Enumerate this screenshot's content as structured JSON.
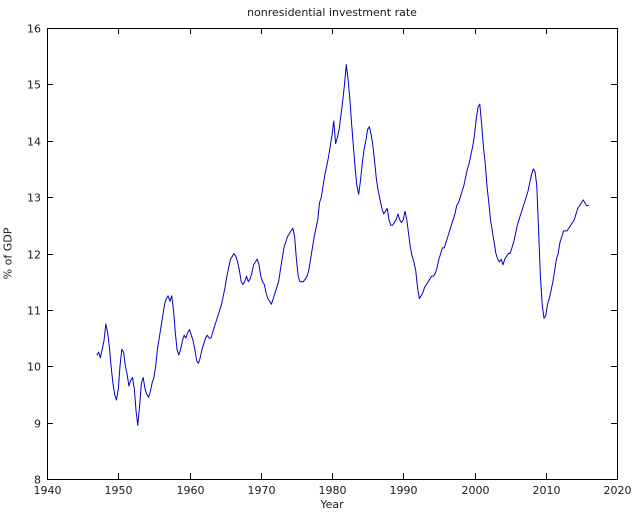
{
  "chart": {
    "title": "nonresidential investment rate",
    "xlabel": "Year",
    "ylabel": "% of GDP"
  },
  "chart_data": {
    "type": "line",
    "title": "nonresidential investment rate",
    "xlabel": "Year",
    "ylabel": "% of GDP",
    "xlim": [
      1940,
      2020
    ],
    "ylim": [
      8,
      16
    ],
    "x_ticks": [
      1940,
      1950,
      1960,
      1970,
      1980,
      1990,
      2000,
      2010,
      2020
    ],
    "y_ticks": [
      8,
      9,
      10,
      11,
      12,
      13,
      14,
      15,
      16
    ],
    "grid": false,
    "legend": "none",
    "line_color": "#0000cc",
    "background": "#ffffff",
    "series": [
      {
        "name": "nonresidential investment rate",
        "x_start": 1947.0,
        "x_step": 0.25,
        "values": [
          10.2,
          10.25,
          10.15,
          10.3,
          10.45,
          10.75,
          10.6,
          10.35,
          10.0,
          9.7,
          9.5,
          9.4,
          9.6,
          10.0,
          10.3,
          10.25,
          10.0,
          9.85,
          9.65,
          9.75,
          9.8,
          9.6,
          9.2,
          8.95,
          9.3,
          9.7,
          9.8,
          9.6,
          9.5,
          9.45,
          9.55,
          9.7,
          9.8,
          10.0,
          10.3,
          10.5,
          10.7,
          10.9,
          11.1,
          11.2,
          11.25,
          11.15,
          11.25,
          11.0,
          10.6,
          10.3,
          10.2,
          10.3,
          10.45,
          10.55,
          10.5,
          10.6,
          10.65,
          10.55,
          10.45,
          10.3,
          10.1,
          10.05,
          10.15,
          10.3,
          10.4,
          10.5,
          10.55,
          10.5,
          10.5,
          10.6,
          10.7,
          10.8,
          10.9,
          11.0,
          11.1,
          11.25,
          11.4,
          11.6,
          11.75,
          11.9,
          11.95,
          12.0,
          11.95,
          11.85,
          11.7,
          11.5,
          11.45,
          11.5,
          11.6,
          11.5,
          11.55,
          11.65,
          11.8,
          11.85,
          11.9,
          11.8,
          11.6,
          11.5,
          11.45,
          11.3,
          11.2,
          11.15,
          11.1,
          11.2,
          11.3,
          11.4,
          11.5,
          11.7,
          11.9,
          12.1,
          12.2,
          12.3,
          12.35,
          12.4,
          12.45,
          12.3,
          11.9,
          11.6,
          11.5,
          11.5,
          11.5,
          11.55,
          11.6,
          11.7,
          11.9,
          12.1,
          12.3,
          12.45,
          12.6,
          12.9,
          13.0,
          13.2,
          13.4,
          13.55,
          13.7,
          13.9,
          14.1,
          14.35,
          13.95,
          14.05,
          14.2,
          14.45,
          14.7,
          15.0,
          15.35,
          15.1,
          14.75,
          14.3,
          13.9,
          13.5,
          13.2,
          13.05,
          13.3,
          13.6,
          13.85,
          14.0,
          14.2,
          14.25,
          14.1,
          13.9,
          13.6,
          13.3,
          13.1,
          12.95,
          12.8,
          12.7,
          12.75,
          12.8,
          12.6,
          12.5,
          12.5,
          12.55,
          12.6,
          12.7,
          12.6,
          12.55,
          12.6,
          12.75,
          12.6,
          12.35,
          12.1,
          11.95,
          11.85,
          11.7,
          11.4,
          11.2,
          11.25,
          11.3,
          11.4,
          11.45,
          11.5,
          11.55,
          11.6,
          11.6,
          11.65,
          11.75,
          11.9,
          12.0,
          12.1,
          12.1,
          12.2,
          12.3,
          12.4,
          12.5,
          12.6,
          12.7,
          12.85,
          12.9,
          13.0,
          13.1,
          13.2,
          13.35,
          13.5,
          13.6,
          13.75,
          13.9,
          14.1,
          14.4,
          14.6,
          14.65,
          14.3,
          13.9,
          13.6,
          13.2,
          12.9,
          12.6,
          12.4,
          12.2,
          12.0,
          11.9,
          11.85,
          11.9,
          11.8,
          11.9,
          11.95,
          12.0,
          12.0,
          12.1,
          12.2,
          12.35,
          12.5,
          12.6,
          12.7,
          12.8,
          12.9,
          13.0,
          13.1,
          13.25,
          13.4,
          13.5,
          13.45,
          13.2,
          12.4,
          11.6,
          11.1,
          10.85,
          10.9,
          11.1,
          11.2,
          11.35,
          11.5,
          11.7,
          11.9,
          12.0,
          12.2,
          12.3,
          12.4,
          12.4,
          12.4,
          12.45,
          12.5,
          12.55,
          12.6,
          12.7,
          12.8,
          12.85,
          12.9,
          12.95,
          12.9,
          12.85,
          12.85
        ]
      }
    ]
  }
}
